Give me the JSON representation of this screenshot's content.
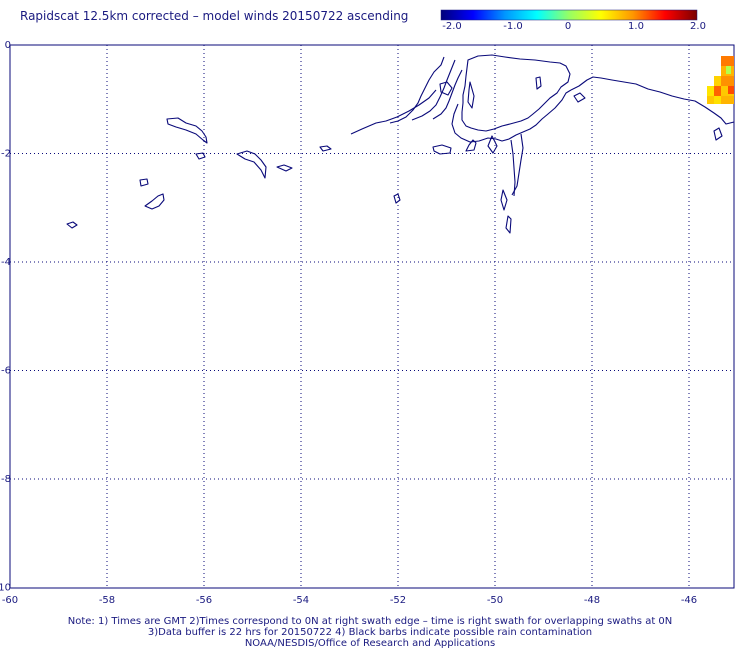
{
  "title": "Rapidscat 12.5km corrected – model winds 20150722 ascending",
  "colorbar": {
    "ticks": [
      "-2.0",
      "-1.0",
      "0",
      "1.0",
      "2.0"
    ],
    "min": -2.0,
    "max": 2.0,
    "colors": [
      "#00007a",
      "#0000ff",
      "#0096ff",
      "#00ffff",
      "#96ff64",
      "#ffff00",
      "#ff9600",
      "#ff0000",
      "#7a0000"
    ]
  },
  "axes": {
    "x_ticks": [
      "-60",
      "-58",
      "-56",
      "-54",
      "-52",
      "-50",
      "-48",
      "-46"
    ],
    "y_ticks": [
      "0",
      "-2",
      "-4",
      "-6",
      "-8",
      "-10"
    ],
    "lon_range": [
      -60,
      -45
    ],
    "lat_range": [
      -10,
      0
    ],
    "grid": true
  },
  "notes": [
    "Note: 1) Times are GMT 2)Times correspond to 0N at right swath edge – time is right swath for overlapping swaths at 0N",
    "3)Data buffer is 22 hrs for 20150722 4) Black barbs indicate possible rain contamination",
    "NOAA/NESDIS/Office of Research and Applications"
  ],
  "colors": {
    "coast": "#0a0a7a",
    "grid": "#0a0a7a",
    "text": "#1a1a80"
  }
}
